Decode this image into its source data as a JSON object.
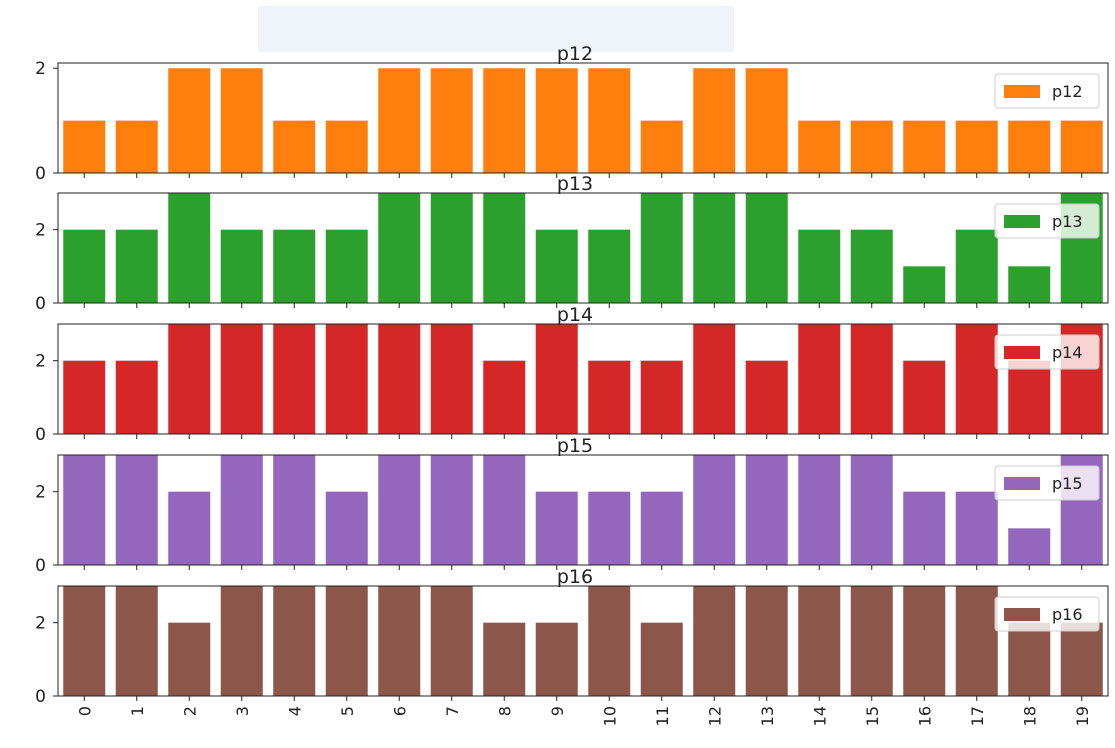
{
  "chart_data": {
    "type": "bar",
    "layout": "stacked-subplots",
    "categories": [
      "0",
      "1",
      "2",
      "3",
      "4",
      "5",
      "6",
      "7",
      "8",
      "9",
      "10",
      "11",
      "12",
      "13",
      "14",
      "15",
      "16",
      "17",
      "18",
      "19"
    ],
    "panels": [
      {
        "title": "p12",
        "color": "#ff7f0e",
        "yticks": [
          "0",
          "2"
        ],
        "ylim": [
          0,
          2.1
        ],
        "series": [
          {
            "name": "p12",
            "values": [
              1,
              1,
              2,
              2,
              1,
              1,
              2,
              2,
              2,
              2,
              2,
              1,
              2,
              2,
              1,
              1,
              1,
              1,
              1,
              1
            ]
          }
        ]
      },
      {
        "title": "p13",
        "color": "#2ca02c",
        "yticks": [
          "0",
          "2"
        ],
        "ylim": [
          0,
          3.0
        ],
        "series": [
          {
            "name": "p13",
            "values": [
              2,
              2,
              3,
              2,
              2,
              2,
              3,
              3,
              3,
              2,
              2,
              3,
              3,
              3,
              2,
              2,
              1,
              2,
              1,
              3
            ]
          }
        ]
      },
      {
        "title": "p14",
        "color": "#d62728",
        "yticks": [
          "0",
          "2"
        ],
        "ylim": [
          0,
          3.0
        ],
        "series": [
          {
            "name": "p14",
            "values": [
              2,
              2,
              3,
              3,
              3,
              3,
              3,
              3,
              2,
              3,
              2,
              2,
              3,
              2,
              3,
              3,
              2,
              3,
              2,
              3
            ]
          }
        ]
      },
      {
        "title": "p15",
        "color": "#9467bd",
        "yticks": [
          "0",
          "2"
        ],
        "ylim": [
          0,
          3.0
        ],
        "series": [
          {
            "name": "p15",
            "values": [
              3,
              3,
              2,
              3,
              3,
              2,
              3,
              3,
              3,
              2,
              2,
              2,
              3,
              3,
              3,
              3,
              2,
              2,
              1,
              3
            ]
          }
        ]
      },
      {
        "title": "p16",
        "color": "#8c564b",
        "yticks": [
          "0",
          "2"
        ],
        "ylim": [
          0,
          3.0
        ],
        "series": [
          {
            "name": "p16",
            "values": [
              3,
              3,
              2,
              3,
              3,
              3,
              3,
              3,
              2,
              2,
              3,
              2,
              3,
              3,
              3,
              3,
              3,
              3,
              2,
              2
            ]
          }
        ]
      }
    ],
    "legend_placement": "right",
    "grid": false,
    "xlabel": "",
    "ylabel": ""
  }
}
